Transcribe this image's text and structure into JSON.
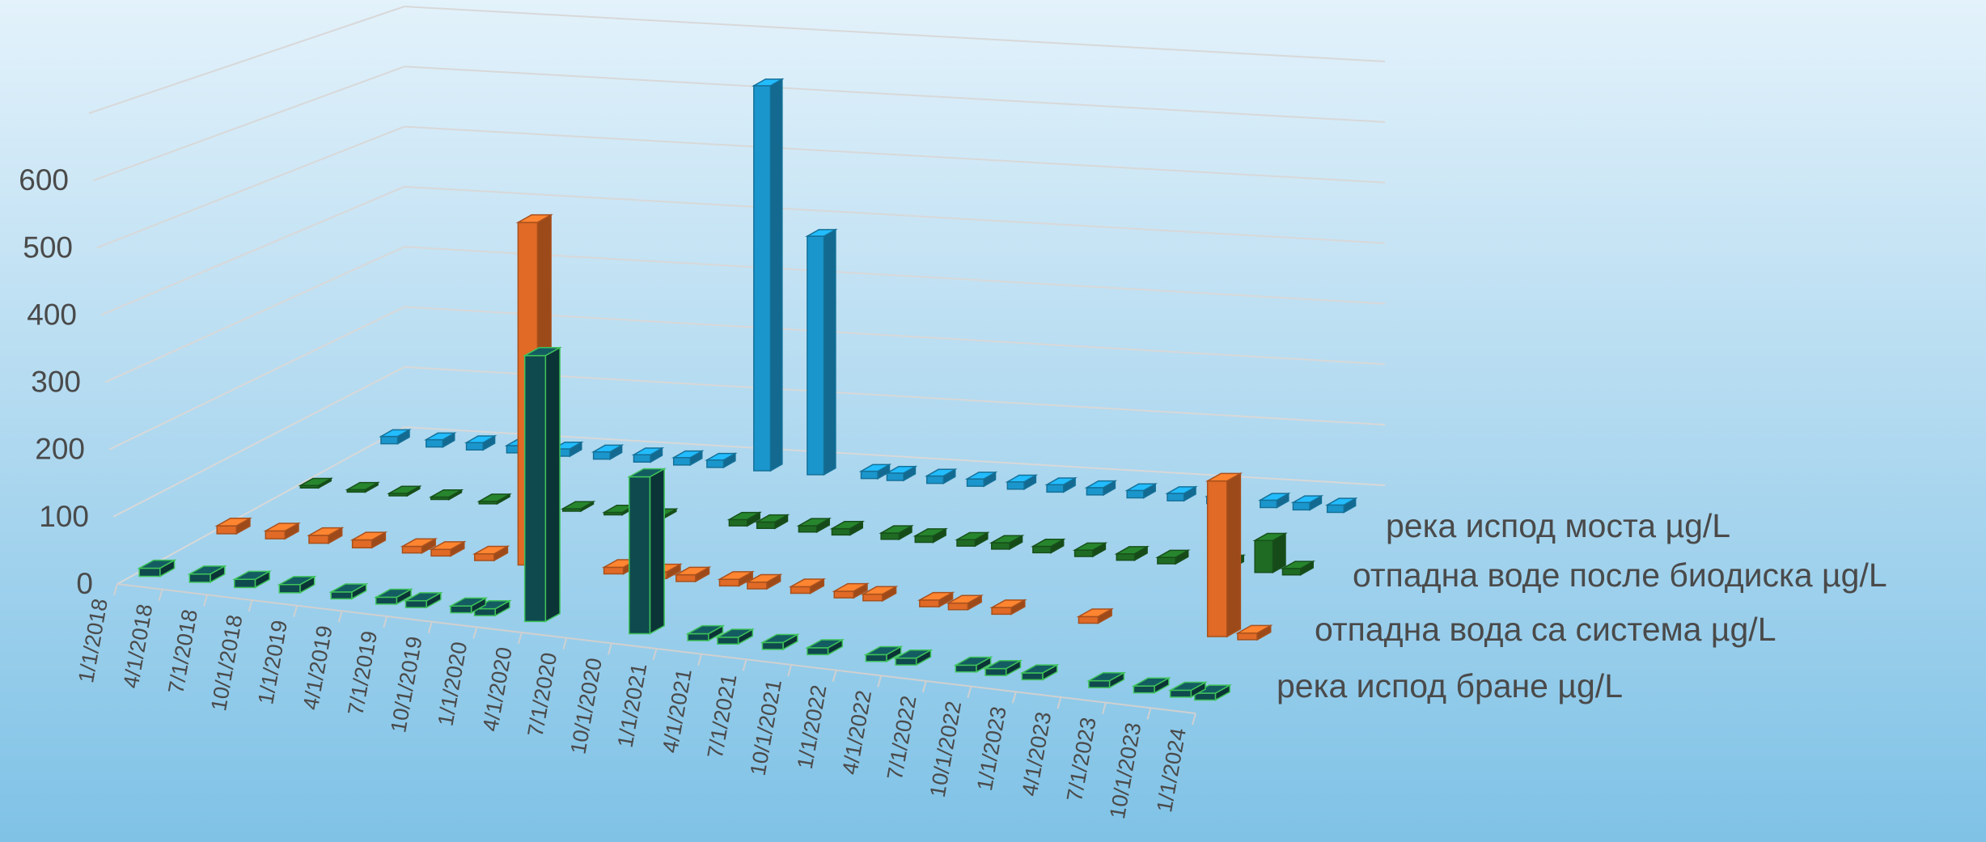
{
  "chart_data": {
    "type": "bar",
    "subtype": "3d-column",
    "title": "",
    "xlabel": "",
    "ylabel": "",
    "ylim": [
      0,
      700
    ],
    "yticks": [
      0,
      100,
      200,
      300,
      400,
      500,
      600
    ],
    "grid": true,
    "legend": "series labels on depth axis, right",
    "x_tick_labels": [
      "1/1/2018",
      "4/1/2018",
      "7/1/2018",
      "10/1/2018",
      "1/1/2019",
      "4/1/2019",
      "7/1/2019",
      "10/1/2019",
      "1/1/2020",
      "4/1/2020",
      "7/1/2020",
      "10/1/2020",
      "1/1/2021",
      "4/1/2021",
      "7/1/2021",
      "10/1/2021",
      "1/1/2022",
      "4/1/2022",
      "7/1/2022",
      "10/1/2022",
      "1/1/2023",
      "4/1/2023",
      "7/1/2023",
      "10/1/2023",
      "1/1/2024"
    ],
    "x_range": [
      "1/1/2018",
      "1/4/2024"
    ],
    "series": [
      {
        "name": "река испод бране µg/L",
        "color": "#0f4a4e",
        "edge_color": "#3fc35a",
        "points": [
          {
            "x": "2/1/2018",
            "y": 12
          },
          {
            "x": "5/15/2018",
            "y": 12
          },
          {
            "x": "8/15/2018",
            "y": 12
          },
          {
            "x": "11/15/2018",
            "y": 12
          },
          {
            "x": "3/1/2019",
            "y": 10
          },
          {
            "x": "6/1/2019",
            "y": 10
          },
          {
            "x": "8/1/2019",
            "y": 10
          },
          {
            "x": "11/1/2019",
            "y": 10
          },
          {
            "x": "12/20/2019",
            "y": 10
          },
          {
            "x": "4/1/2020",
            "y": 390
          },
          {
            "x": "11/1/2020",
            "y": 230
          },
          {
            "x": "3/1/2021",
            "y": 10
          },
          {
            "x": "5/1/2021",
            "y": 10
          },
          {
            "x": "8/1/2021",
            "y": 10
          },
          {
            "x": "11/1/2021",
            "y": 10
          },
          {
            "x": "3/1/2022",
            "y": 10
          },
          {
            "x": "5/1/2022",
            "y": 10
          },
          {
            "x": "9/1/2022",
            "y": 10
          },
          {
            "x": "11/1/2022",
            "y": 10
          },
          {
            "x": "1/15/2023",
            "y": 10
          },
          {
            "x": "6/1/2023",
            "y": 10
          },
          {
            "x": "9/1/2023",
            "y": 10
          },
          {
            "x": "11/15/2023",
            "y": 10
          },
          {
            "x": "1/4/2024",
            "y": 10
          }
        ]
      },
      {
        "name": "отпадна вода са система µg/L",
        "color": "#e06a26",
        "points": [
          {
            "x": "2/1/2018",
            "y": 12
          },
          {
            "x": "5/15/2018",
            "y": 12
          },
          {
            "x": "8/15/2018",
            "y": 12
          },
          {
            "x": "11/15/2018",
            "y": 12
          },
          {
            "x": "3/1/2019",
            "y": 10
          },
          {
            "x": "5/1/2019",
            "y": 10
          },
          {
            "x": "8/1/2019",
            "y": 10
          },
          {
            "x": "11/1/2019",
            "y": 520
          },
          {
            "x": "5/1/2020",
            "y": 10
          },
          {
            "x": "8/1/2020",
            "y": 10
          },
          {
            "x": "10/1/2020",
            "y": 10
          },
          {
            "x": "1/1/2021",
            "y": 10
          },
          {
            "x": "3/1/2021",
            "y": 10
          },
          {
            "x": "6/1/2021",
            "y": 10
          },
          {
            "x": "9/1/2021",
            "y": 10
          },
          {
            "x": "11/1/2021",
            "y": 10
          },
          {
            "x": "3/1/2022",
            "y": 10
          },
          {
            "x": "5/1/2022",
            "y": 10
          },
          {
            "x": "8/1/2022",
            "y": 10
          },
          {
            "x": "2/1/2023",
            "y": 10
          },
          {
            "x": "11/1/2023",
            "y": 235
          },
          {
            "x": "1/4/2024",
            "y": 10
          }
        ]
      },
      {
        "name": "отпадна воде после биодиска µg/L",
        "color": "#1f6b24",
        "points": [
          {
            "x": "2/1/2018",
            "y": 3
          },
          {
            "x": "5/15/2018",
            "y": 3
          },
          {
            "x": "8/15/2018",
            "y": 3
          },
          {
            "x": "11/15/2018",
            "y": 3
          },
          {
            "x": "3/1/2019",
            "y": 3
          },
          {
            "x": "6/1/2019",
            "y": 3
          },
          {
            "x": "9/1/2019",
            "y": 3
          },
          {
            "x": "12/1/2019",
            "y": 3
          },
          {
            "x": "3/1/2020",
            "y": 3
          },
          {
            "x": "9/1/2020",
            "y": 10
          },
          {
            "x": "11/1/2020",
            "y": 10
          },
          {
            "x": "2/1/2021",
            "y": 10
          },
          {
            "x": "4/15/2021",
            "y": 10
          },
          {
            "x": "8/1/2021",
            "y": 10
          },
          {
            "x": "10/15/2021",
            "y": 10
          },
          {
            "x": "1/15/2022",
            "y": 10
          },
          {
            "x": "4/1/2022",
            "y": 10
          },
          {
            "x": "7/1/2022",
            "y": 10
          },
          {
            "x": "10/1/2022",
            "y": 10
          },
          {
            "x": "1/1/2023",
            "y": 10
          },
          {
            "x": "4/1/2023",
            "y": 10
          },
          {
            "x": "8/1/2023",
            "y": 10
          },
          {
            "x": "11/1/2023",
            "y": 50
          },
          {
            "x": "1/1/2024",
            "y": 10
          }
        ]
      },
      {
        "name": "река испод моста µg/L",
        "color": "#1b96cc",
        "points": [
          {
            "x": "2/1/2018",
            "y": 12
          },
          {
            "x": "5/15/2018",
            "y": 12
          },
          {
            "x": "8/15/2018",
            "y": 12
          },
          {
            "x": "11/15/2018",
            "y": 12
          },
          {
            "x": "3/1/2019",
            "y": 12
          },
          {
            "x": "6/1/2019",
            "y": 12
          },
          {
            "x": "9/1/2019",
            "y": 12
          },
          {
            "x": "12/1/2019",
            "y": 12
          },
          {
            "x": "2/15/2020",
            "y": 12
          },
          {
            "x": "6/1/2020",
            "y": 630
          },
          {
            "x": "10/1/2020",
            "y": 390
          },
          {
            "x": "2/1/2021",
            "y": 12
          },
          {
            "x": "4/1/2021",
            "y": 12
          },
          {
            "x": "7/1/2021",
            "y": 12
          },
          {
            "x": "10/1/2021",
            "y": 12
          },
          {
            "x": "1/1/2022",
            "y": 12
          },
          {
            "x": "4/1/2022",
            "y": 12
          },
          {
            "x": "7/1/2022",
            "y": 12
          },
          {
            "x": "10/1/2022",
            "y": 12
          },
          {
            "x": "1/1/2023",
            "y": 12
          },
          {
            "x": "4/1/2023",
            "y": 12
          },
          {
            "x": "8/1/2023",
            "y": 12
          },
          {
            "x": "10/15/2023",
            "y": 12
          },
          {
            "x": "1/1/2024",
            "y": 12
          }
        ]
      }
    ]
  }
}
